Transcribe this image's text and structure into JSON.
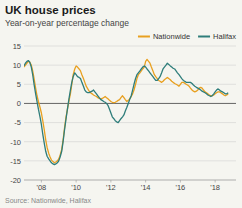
{
  "chart_data": {
    "type": "line",
    "title": "UK house prices",
    "subtitle": "Year-on-year percentage change",
    "source": "Source: Nationwide, Halifax",
    "xlim": [
      2007.0,
      2019.2
    ],
    "xticks": [
      {
        "value": 2008,
        "label": "'08"
      },
      {
        "value": 2010,
        "label": "'10"
      },
      {
        "value": 2012,
        "label": "'12"
      },
      {
        "value": 2014,
        "label": "'14"
      },
      {
        "value": 2016,
        "label": "'16"
      },
      {
        "value": 2018,
        "label": "'18"
      }
    ],
    "ylim": [
      -20,
      15
    ],
    "yticks": [
      -20,
      -15,
      -10,
      -5,
      0,
      5,
      10,
      15
    ],
    "grid": true,
    "legend": "upper right",
    "x": [
      2007.0,
      2007.08,
      2007.17,
      2007.25,
      2007.33,
      2007.42,
      2007.5,
      2007.58,
      2007.67,
      2007.75,
      2007.83,
      2007.92,
      2008.0,
      2008.08,
      2008.17,
      2008.25,
      2008.33,
      2008.42,
      2008.5,
      2008.58,
      2008.67,
      2008.75,
      2008.83,
      2008.92,
      2009.0,
      2009.08,
      2009.17,
      2009.25,
      2009.33,
      2009.42,
      2009.5,
      2009.58,
      2009.67,
      2009.75,
      2009.83,
      2009.92,
      2010.0,
      2010.08,
      2010.17,
      2010.25,
      2010.33,
      2010.42,
      2010.5,
      2010.58,
      2010.67,
      2010.75,
      2010.83,
      2010.92,
      2011.0,
      2011.08,
      2011.17,
      2011.25,
      2011.33,
      2011.42,
      2011.5,
      2011.58,
      2011.67,
      2011.75,
      2011.83,
      2011.92,
      2012.0,
      2012.08,
      2012.17,
      2012.25,
      2012.33,
      2012.42,
      2012.5,
      2012.58,
      2012.67,
      2012.75,
      2012.83,
      2012.92,
      2013.0,
      2013.08,
      2013.17,
      2013.25,
      2013.33,
      2013.42,
      2013.5,
      2013.58,
      2013.67,
      2013.75,
      2013.83,
      2013.92,
      2014.0,
      2014.08,
      2014.17,
      2014.25,
      2014.33,
      2014.42,
      2014.5,
      2014.58,
      2014.67,
      2014.75,
      2014.83,
      2014.92,
      2015.0,
      2015.08,
      2015.17,
      2015.25,
      2015.33,
      2015.42,
      2015.5,
      2015.58,
      2015.67,
      2015.75,
      2015.83,
      2015.92,
      2016.0,
      2016.08,
      2016.17,
      2016.25,
      2016.33,
      2016.42,
      2016.5,
      2016.58,
      2016.67,
      2016.75,
      2016.83,
      2016.92,
      2017.0,
      2017.08,
      2017.17,
      2017.25,
      2017.33,
      2017.42,
      2017.5,
      2017.58,
      2017.67,
      2017.75,
      2017.83,
      2017.92,
      2018.0,
      2018.08,
      2018.17,
      2018.25,
      2018.33,
      2018.42,
      2018.5,
      2018.58,
      2018.67,
      2018.75
    ],
    "series": [
      {
        "name": "Nationwide",
        "color": "#e8a020",
        "values": [
          9.5,
          10.0,
          10.5,
          11.0,
          10.8,
          10.0,
          8.5,
          6.5,
          4.0,
          2.0,
          0.5,
          -1.0,
          -2.5,
          -4.5,
          -7.0,
          -9.5,
          -11.5,
          -13.0,
          -14.0,
          -14.8,
          -15.2,
          -15.5,
          -15.3,
          -15.0,
          -14.5,
          -13.5,
          -12.0,
          -9.5,
          -6.5,
          -3.5,
          -1.5,
          0.5,
          2.5,
          5.0,
          7.5,
          9.0,
          9.8,
          9.5,
          9.0,
          8.5,
          7.5,
          6.5,
          5.5,
          4.5,
          3.8,
          3.2,
          2.8,
          2.5,
          2.2,
          2.0,
          1.8,
          1.5,
          1.3,
          1.2,
          1.3,
          1.5,
          1.8,
          1.5,
          1.2,
          0.8,
          0.5,
          0.3,
          0.2,
          0.3,
          0.5,
          0.8,
          1.0,
          1.5,
          2.0,
          1.5,
          1.0,
          0.5,
          0.8,
          1.2,
          1.8,
          2.5,
          3.5,
          5.0,
          6.5,
          7.5,
          8.0,
          8.5,
          9.0,
          9.5,
          11.0,
          11.5,
          11.0,
          10.5,
          9.5,
          8.5,
          7.5,
          7.0,
          6.5,
          6.0,
          5.8,
          5.5,
          5.8,
          6.2,
          6.5,
          6.8,
          6.5,
          6.2,
          5.8,
          5.5,
          5.2,
          5.0,
          4.8,
          4.5,
          5.0,
          5.5,
          5.5,
          5.3,
          5.0,
          4.8,
          4.5,
          4.0,
          3.5,
          3.2,
          3.0,
          3.2,
          3.5,
          4.0,
          4.2,
          4.0,
          3.5,
          3.0,
          2.8,
          2.5,
          2.2,
          2.0,
          2.0,
          2.2,
          2.5,
          2.8,
          3.0,
          3.0,
          2.8,
          2.5,
          2.2,
          2.0,
          2.2,
          2.5
        ]
      },
      {
        "name": "Halifax",
        "color": "#2e7d7a",
        "values": [
          9.8,
          10.5,
          11.0,
          11.2,
          10.8,
          9.5,
          7.5,
          5.0,
          2.5,
          0.5,
          -1.5,
          -3.5,
          -5.5,
          -8.0,
          -10.5,
          -12.5,
          -13.8,
          -14.5,
          -15.0,
          -15.5,
          -15.8,
          -16.0,
          -15.8,
          -15.5,
          -15.0,
          -14.0,
          -12.5,
          -10.0,
          -7.0,
          -4.0,
          -1.5,
          1.0,
          3.5,
          5.5,
          7.0,
          8.0,
          7.5,
          7.0,
          6.8,
          6.5,
          5.5,
          4.5,
          3.5,
          3.0,
          2.8,
          2.8,
          3.0,
          3.2,
          3.5,
          3.0,
          2.5,
          2.0,
          1.5,
          1.0,
          0.8,
          0.5,
          0.3,
          0.0,
          -0.5,
          -1.5,
          -2.5,
          -3.5,
          -4.0,
          -4.5,
          -4.8,
          -5.0,
          -4.5,
          -4.0,
          -3.5,
          -3.0,
          -2.0,
          -1.0,
          0.0,
          1.0,
          2.0,
          3.5,
          5.0,
          6.5,
          7.5,
          8.0,
          8.5,
          9.0,
          9.5,
          9.8,
          9.5,
          9.0,
          8.5,
          8.0,
          7.5,
          7.0,
          6.5,
          6.0,
          6.0,
          6.5,
          7.0,
          8.0,
          9.0,
          9.5,
          10.0,
          10.5,
          10.2,
          9.8,
          9.5,
          9.2,
          9.0,
          8.5,
          8.0,
          7.5,
          7.0,
          6.5,
          6.0,
          5.8,
          5.5,
          5.5,
          5.5,
          5.5,
          5.2,
          4.8,
          4.5,
          4.2,
          4.0,
          3.8,
          3.5,
          3.2,
          3.0,
          2.8,
          2.5,
          2.2,
          2.0,
          1.8,
          2.0,
          2.5,
          3.0,
          3.5,
          3.8,
          3.5,
          3.2,
          3.0,
          2.8,
          2.5,
          2.5,
          2.8
        ]
      }
    ]
  }
}
